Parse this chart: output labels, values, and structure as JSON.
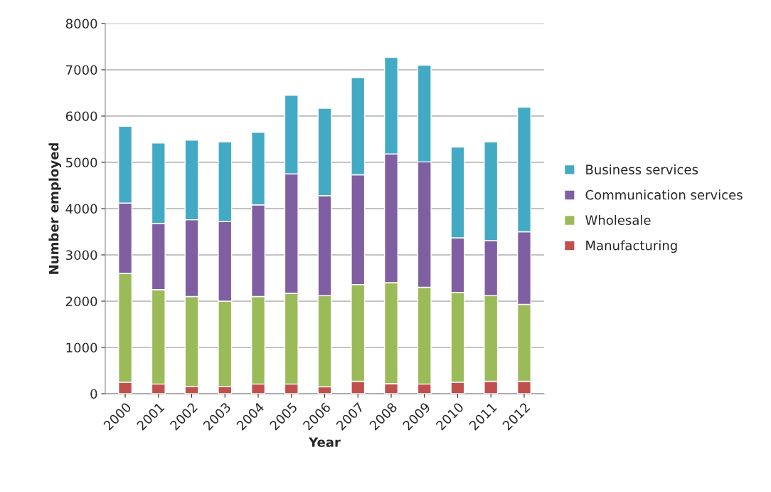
{
  "chart_data": {
    "type": "bar",
    "stacked": true,
    "xlabel": "Year",
    "ylabel": "Number employed",
    "categories": [
      "2000",
      "2001",
      "2002",
      "2003",
      "2004",
      "2005",
      "2006",
      "2007",
      "2008",
      "2009",
      "2010",
      "2011",
      "2012"
    ],
    "series": [
      {
        "name": "Manufacturing",
        "color": "#c0504d",
        "values": [
          250,
          210,
          160,
          160,
          210,
          210,
          150,
          270,
          220,
          210,
          250,
          270,
          270
        ]
      },
      {
        "name": "Wholesale",
        "color": "#9bbb59",
        "values": [
          2350,
          2040,
          1940,
          1840,
          1890,
          1960,
          1970,
          2090,
          2180,
          2090,
          1940,
          1850,
          1660
        ]
      },
      {
        "name": "Communication services",
        "color": "#7f5fa1",
        "values": [
          1520,
          1430,
          1660,
          1720,
          1980,
          2580,
          2160,
          2370,
          2780,
          2710,
          1180,
          1190,
          1570
        ]
      },
      {
        "name": "Business services",
        "color": "#43aac6",
        "values": [
          1660,
          1740,
          1720,
          1720,
          1570,
          1700,
          1890,
          2100,
          2090,
          2090,
          1960,
          2130,
          2690
        ]
      }
    ],
    "ylim": [
      0,
      8000
    ],
    "yticks": [
      0,
      1000,
      2000,
      3000,
      4000,
      5000,
      6000,
      7000,
      8000
    ],
    "grid": "y",
    "legend": "right"
  }
}
